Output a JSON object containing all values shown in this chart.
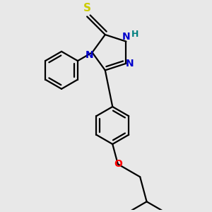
{
  "background_color": "#e8e8e8",
  "bond_color": "#000000",
  "N_color": "#0000cc",
  "S_color": "#cccc00",
  "O_color": "#ff0000",
  "H_color": "#008080",
  "line_width": 1.6,
  "figsize": [
    3.0,
    3.0
  ],
  "dpi": 100,
  "xlim": [
    -1.6,
    1.4
  ],
  "ylim": [
    -2.8,
    1.3
  ]
}
